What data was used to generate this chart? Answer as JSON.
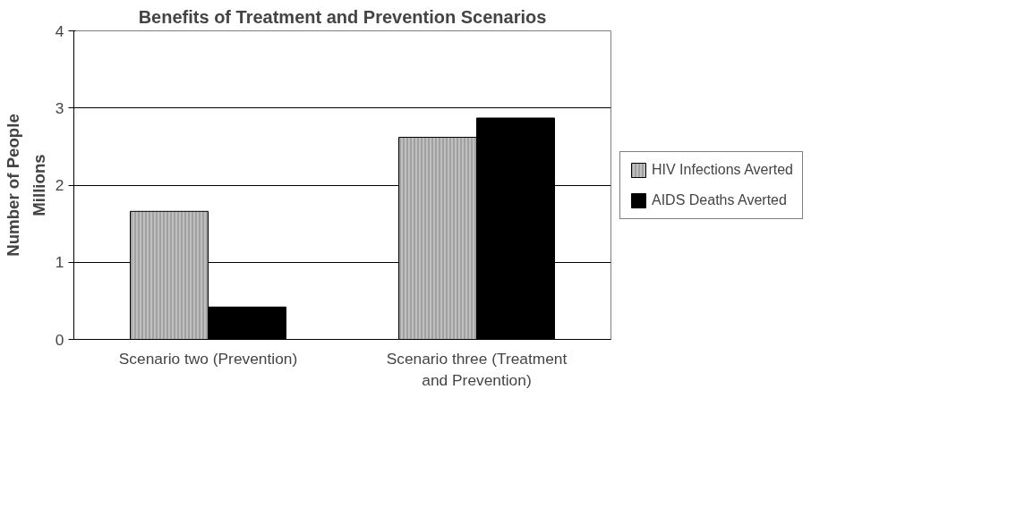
{
  "chart_data": {
    "type": "bar",
    "title": "Benefits of Treatment and Prevention Scenarios",
    "ylabel": "Number of People",
    "annotations": [
      "Millions"
    ],
    "categories": [
      "Scenario two (Prevention)",
      "Scenario three (Treatment and Prevention)"
    ],
    "series": [
      {
        "name": "HIV Infections Averted",
        "color": "#c0c0c0",
        "values": [
          1.66,
          2.62
        ]
      },
      {
        "name": "AIDS Deaths Averted",
        "color": "#000000",
        "values": [
          0.42,
          2.87
        ]
      }
    ],
    "ylim": [
      0,
      4
    ],
    "yticks": [
      0,
      1,
      2,
      3,
      4
    ],
    "grid": "y",
    "legend": "right"
  }
}
